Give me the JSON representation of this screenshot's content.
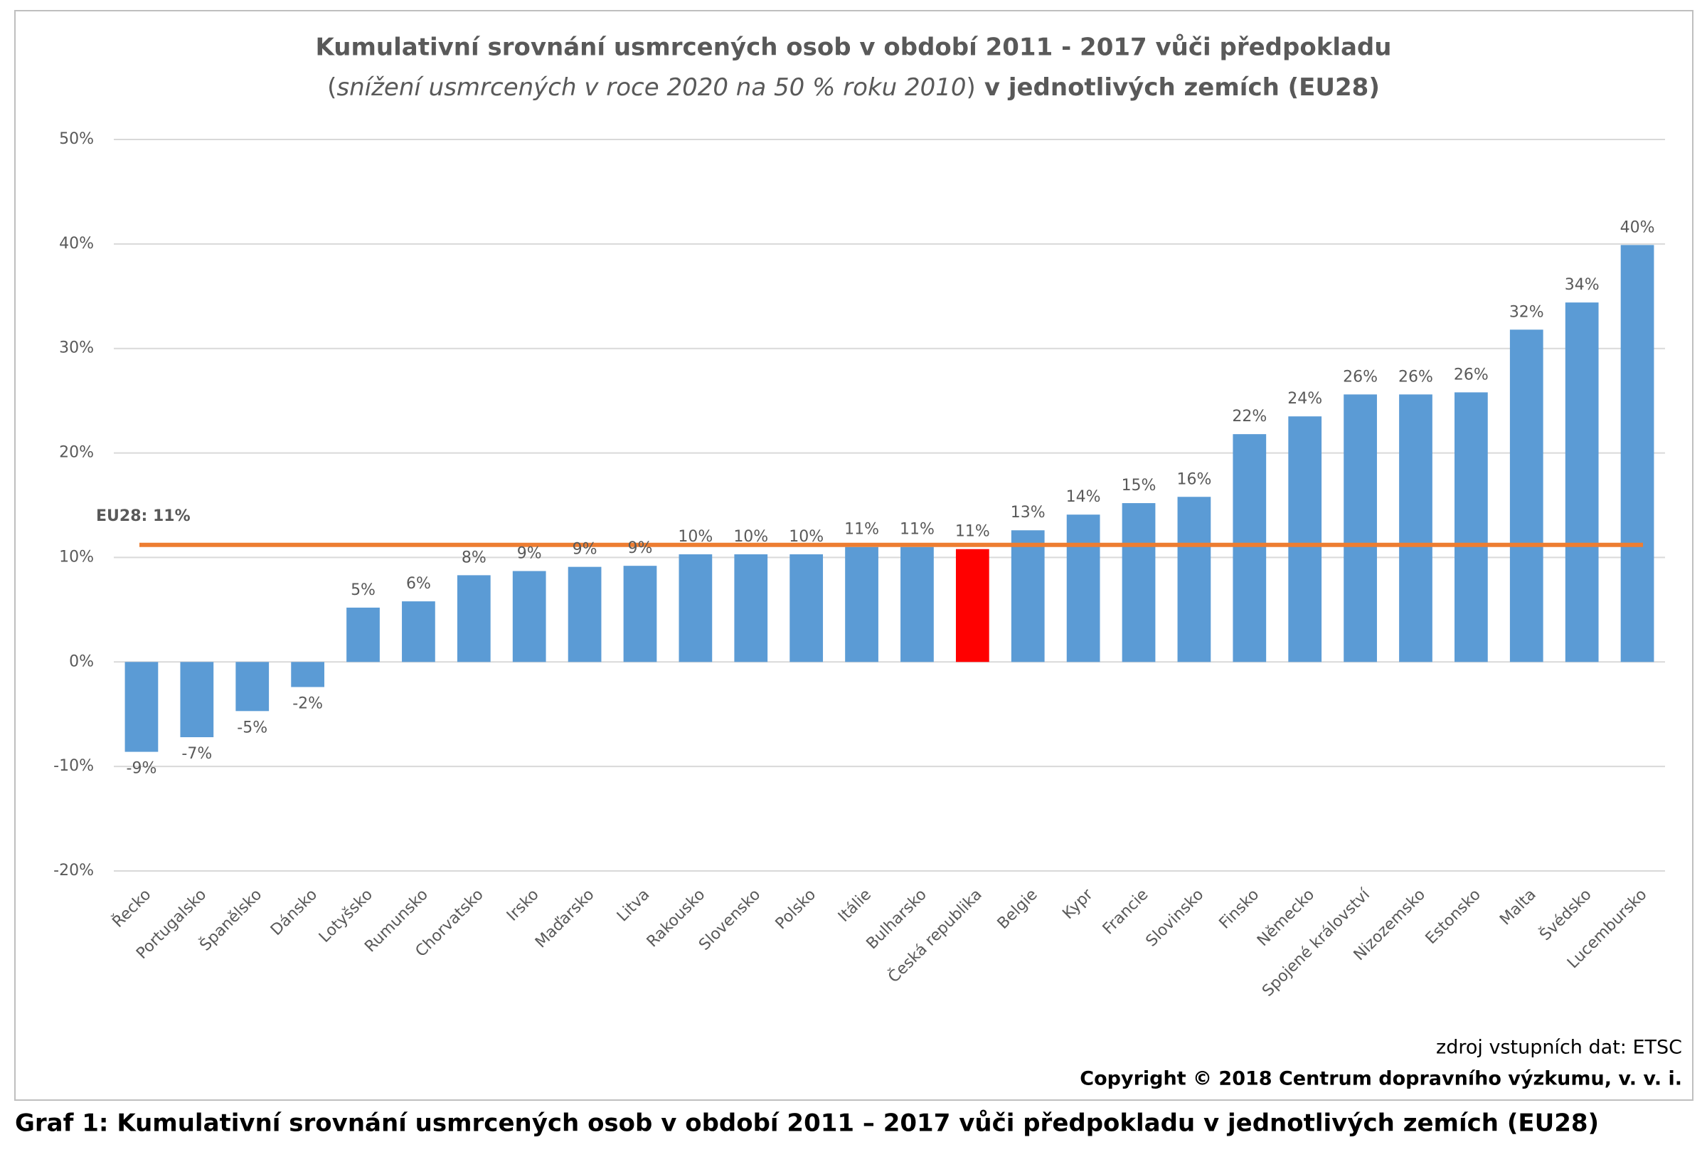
{
  "chart_data": {
    "type": "bar",
    "title": "Kumulativní srovnání usmrcených osob v období 2011 - 2017 vůči předpokladu",
    "subtitle_parts": [
      "(",
      "snížení usmrcených v roce 2020 na 50 % roku 2010",
      ")",
      "v jednotlivých zemích (EU28)"
    ],
    "categories": [
      "Řecko",
      "Portugalsko",
      "Španělsko",
      "Dánsko",
      "Lotyšsko",
      "Rumunsko",
      "Chorvatsko",
      "Irsko",
      "Maďarsko",
      "Litva",
      "Rakousko",
      "Slovensko",
      "Polsko",
      "Itálie",
      "Bulharsko",
      "Česká republika",
      "Belgie",
      "Kypr",
      "Francie",
      "Slovinsko",
      "Finsko",
      "Německo",
      "Spojené království",
      "Nizozemsko",
      "Estonsko",
      "Malta",
      "Švédsko",
      "Lucembursko"
    ],
    "values": [
      -8.6,
      -7.2,
      -4.7,
      -2.4,
      5.2,
      5.8,
      8.3,
      8.7,
      9.1,
      9.2,
      10.3,
      10.3,
      10.3,
      11.0,
      11.0,
      10.8,
      12.6,
      14.1,
      15.2,
      15.8,
      21.8,
      23.5,
      25.6,
      25.6,
      25.8,
      31.8,
      34.4,
      39.9
    ],
    "value_labels": [
      "-9%",
      "-7%",
      "-5%",
      "-2%",
      "5%",
      "6%",
      "8%",
      "9%",
      "9%",
      "9%",
      "10%",
      "10%",
      "10%",
      "11%",
      "11%",
      "11%",
      "13%",
      "14%",
      "15%",
      "16%",
      "22%",
      "24%",
      "26%",
      "26%",
      "26%",
      "32%",
      "34%",
      "40%"
    ],
    "colors": [
      "#5b9bd5",
      "#5b9bd5",
      "#5b9bd5",
      "#5b9bd5",
      "#5b9bd5",
      "#5b9bd5",
      "#5b9bd5",
      "#5b9bd5",
      "#5b9bd5",
      "#5b9bd5",
      "#5b9bd5",
      "#5b9bd5",
      "#5b9bd5",
      "#5b9bd5",
      "#5b9bd5",
      "#ff0000",
      "#5b9bd5",
      "#5b9bd5",
      "#5b9bd5",
      "#5b9bd5",
      "#5b9bd5",
      "#5b9bd5",
      "#5b9bd5",
      "#5b9bd5",
      "#5b9bd5",
      "#5b9bd5",
      "#5b9bd5",
      "#5b9bd5"
    ],
    "reference": {
      "value": 11.2,
      "label": "EU28: 11%",
      "color": "#ed7d31"
    },
    "ylim": [
      -20,
      50
    ],
    "yticks": [
      {
        "value": -20,
        "label": "-20%"
      },
      {
        "value": -10,
        "label": "-10%"
      },
      {
        "value": 0,
        "label": "0%"
      },
      {
        "value": 10,
        "label": "10%"
      },
      {
        "value": 20,
        "label": "20%"
      },
      {
        "value": 30,
        "label": "30%"
      },
      {
        "value": 40,
        "label": "40%"
      },
      {
        "value": 50,
        "label": "50%"
      }
    ],
    "grid": true,
    "source": "zdroj vstupních dat: ETSC",
    "copyright": "Copyright © 2018  Centrum dopravního výzkumu, v. v. i.",
    "caption": "Graf 1: Kumulativní srovnání usmrcených osob v období 2011 – 2017 vůči předpokladu v jednotlivých zemích (EU28)"
  }
}
